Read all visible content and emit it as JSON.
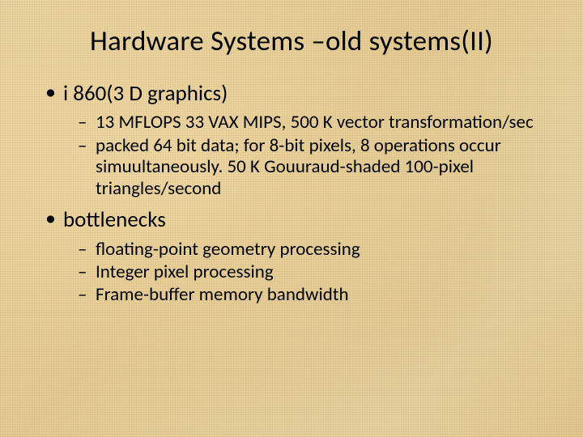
{
  "slide": {
    "title": "Hardware Systems –old systems(II)",
    "background": {
      "base_color": "#e8d4a0",
      "texture": "woven-fabric",
      "accent_colors": [
        "#e2cb93",
        "#eadaac",
        "#e0c990"
      ]
    },
    "text_color": "#000000",
    "font_family": "Calibri",
    "title_fontsize": 35,
    "level1_fontsize": 27,
    "level2_fontsize": 23,
    "bullets": [
      {
        "label": "i 860(3 D graphics)",
        "sub": [
          "13 MFLOPS 33 VAX MIPS, 500 K vector transformation/sec",
          "packed 64 bit data; for 8-bit pixels, 8 operations occur simuultaneously. 50 K Gouuraud-shaded 100-pixel triangles/second"
        ]
      },
      {
        "label": "bottlenecks",
        "sub": [
          "floating-point geometry processing",
          "Integer pixel processing",
          "Frame-buffer memory bandwidth"
        ]
      }
    ]
  }
}
